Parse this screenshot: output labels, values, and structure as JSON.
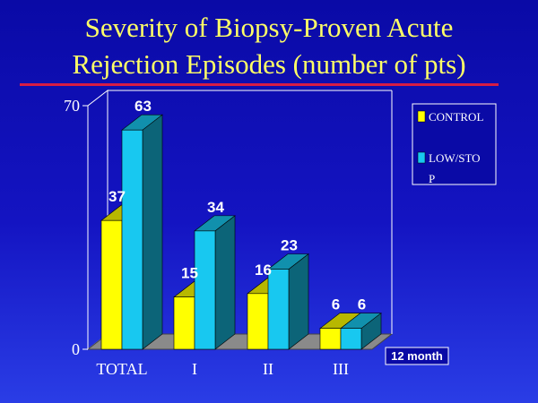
{
  "title": {
    "line1": "Severity of Biopsy-Proven Acute",
    "line2": "Rejection Episodes (number of pts)"
  },
  "chart_data": {
    "type": "bar",
    "title": "Severity of Biopsy-Proven Acute Rejection Episodes (number of pts)",
    "categories": [
      "TOTAL",
      "I",
      "II",
      "III"
    ],
    "series": [
      {
        "name": "CONTROL",
        "values": [
          37,
          15,
          16,
          6
        ],
        "color": "#ffff00"
      },
      {
        "name": "LOW/STOP",
        "values": [
          63,
          34,
          23,
          6
        ],
        "color": "#18c8f0"
      }
    ],
    "y_ticks": [
      "70",
      "0"
    ],
    "ylim": [
      0,
      70
    ],
    "legend": {
      "placement": "right",
      "lines": [
        "CONTROL",
        "LOW/STO",
        "P"
      ]
    },
    "annotation": "12 month",
    "grid": false,
    "style": "3d"
  }
}
